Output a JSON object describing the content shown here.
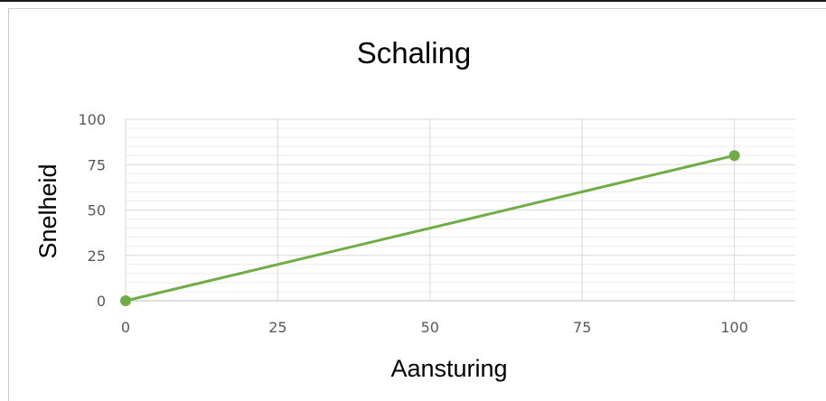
{
  "chart_data": {
    "type": "line",
    "title": "Schaling",
    "xlabel": "Aansturing",
    "ylabel": "Snelheid",
    "x_ticks": [
      "0",
      "25",
      "50",
      "75",
      "100"
    ],
    "y_ticks": [
      "0",
      "25",
      "50",
      "75",
      "100"
    ],
    "xlim": [
      0,
      110
    ],
    "ylim": [
      0,
      100
    ],
    "grid": true,
    "minor_grid_y": true,
    "series": [
      {
        "x": [
          0,
          100
        ],
        "values": [
          0,
          80
        ],
        "color": "#70ad47",
        "marker": "circle"
      }
    ]
  }
}
